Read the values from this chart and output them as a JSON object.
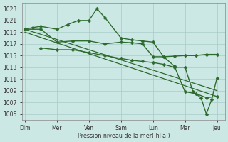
{
  "background_color": "#cce8e4",
  "grid_color": "#a8ccc8",
  "line_color": "#2d6a2d",
  "xlabel": "Pression niveau de la mer( hPa )",
  "ylim": [
    1004,
    1024
  ],
  "yticks": [
    1005,
    1007,
    1009,
    1011,
    1013,
    1015,
    1017,
    1019,
    1021,
    1023
  ],
  "x_day_labels": [
    "Dim",
    "Mer",
    "Ven",
    "Sam",
    "Lun",
    "Mar",
    "Jeu"
  ],
  "x_day_positions": [
    0,
    12,
    24,
    36,
    48,
    60,
    72
  ],
  "xlim": [
    -1,
    75
  ],
  "series": [
    {
      "x": [
        0,
        3,
        6,
        12,
        16,
        20,
        24,
        27,
        30,
        36,
        40,
        44,
        48,
        52,
        56,
        60,
        64,
        68,
        72
      ],
      "y": [
        1019.5,
        1019.8,
        1020.0,
        1019.5,
        1020.3,
        1021.0,
        1021.0,
        1023.0,
        1021.5,
        1018.0,
        1017.7,
        1017.5,
        1017.3,
        1014.8,
        1014.9,
        1015.0,
        1015.0,
        1015.2,
        1015.2
      ],
      "marker": "D",
      "markersize": 2.5,
      "linewidth": 1.0,
      "markevery": 1
    },
    {
      "x": [
        0,
        6,
        12,
        18,
        24,
        30,
        36,
        40,
        44,
        48,
        52,
        56,
        60,
        64,
        68,
        72
      ],
      "y": [
        1019.5,
        1019.5,
        1017.3,
        1017.5,
        1017.5,
        1017.0,
        1017.3,
        1017.2,
        1017.0,
        1014.8,
        1014.8,
        1013.2,
        1008.8,
        1008.5,
        1007.8,
        1008.0
      ],
      "marker": "D",
      "markersize": 2.5,
      "linewidth": 1.0,
      "markevery": 1
    },
    {
      "x": [
        0,
        72
      ],
      "y": [
        1019.5,
        1009.0
      ],
      "marker": null,
      "markersize": 0,
      "linewidth": 0.9
    },
    {
      "x": [
        0,
        72
      ],
      "y": [
        1019.0,
        1008.0
      ],
      "marker": null,
      "markersize": 0,
      "linewidth": 0.9
    },
    {
      "x": [
        6,
        12,
        18,
        24,
        30,
        36,
        40,
        44,
        48,
        52,
        56,
        60,
        63,
        66,
        68,
        70,
        72
      ],
      "y": [
        1016.3,
        1016.0,
        1016.0,
        1015.5,
        1015.0,
        1014.5,
        1014.2,
        1014.0,
        1013.8,
        1013.5,
        1013.0,
        1013.0,
        1008.8,
        1007.8,
        1005.0,
        1007.5,
        1011.2
      ],
      "marker": "D",
      "markersize": 2.5,
      "linewidth": 1.0,
      "markevery": 1
    }
  ]
}
